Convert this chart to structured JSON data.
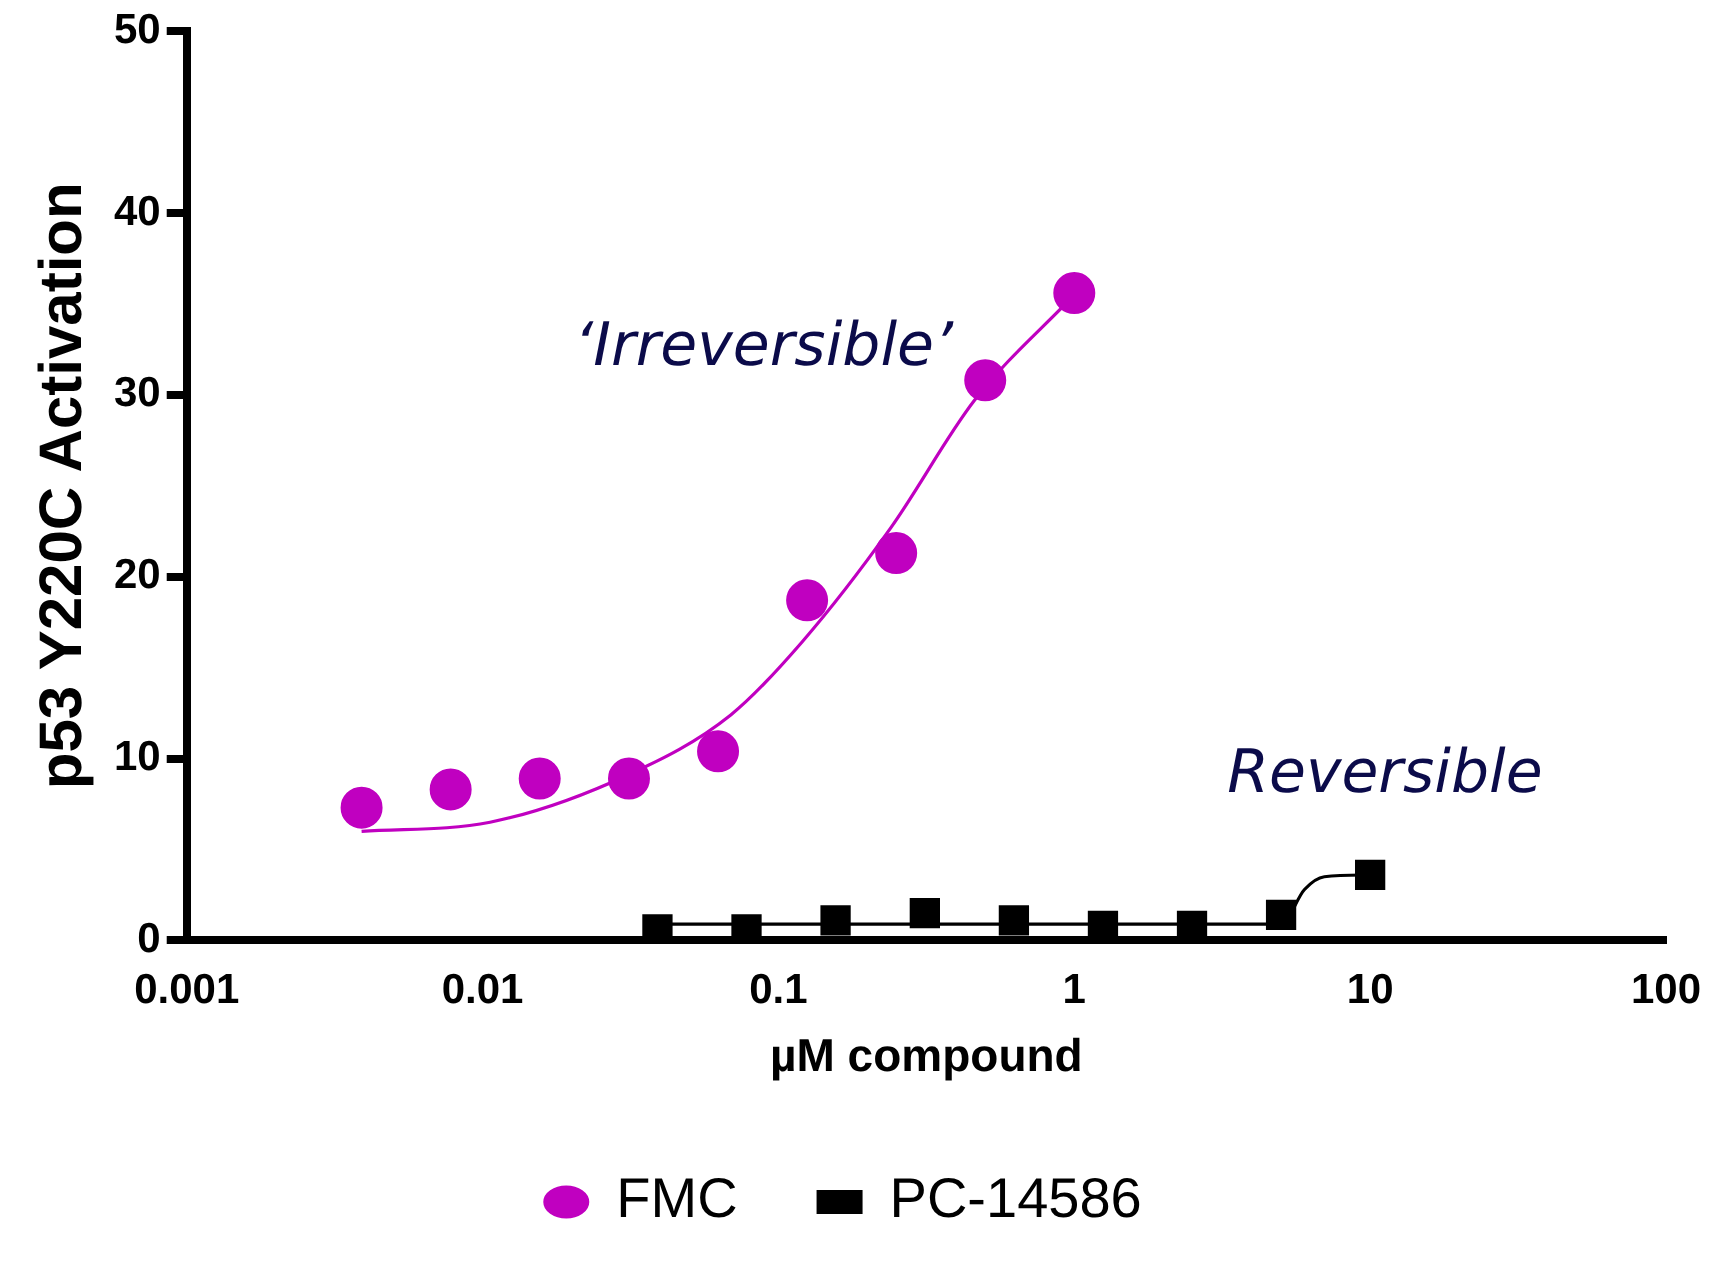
{
  "chart_data": {
    "type": "scatter",
    "xlabel": "µM compound",
    "ylabel": "p53 Y220C Activation",
    "log": "x",
    "xlim": [
      0.001,
      100
    ],
    "xticks": [
      0.001,
      0.01,
      0.1,
      1,
      10,
      100
    ],
    "ylim": [
      0,
      50
    ],
    "yticks": [
      0,
      10,
      20,
      30,
      40,
      50
    ],
    "grid": false,
    "legend": "bottom",
    "series": [
      {
        "name": "FMC",
        "color": "#c000c0",
        "marker": "circle",
        "x": [
          0.0039,
          0.0078,
          0.0156,
          0.03125,
          0.0625,
          0.125,
          0.25,
          0.5,
          1
        ],
        "values": [
          7.3,
          8.3,
          8.9,
          8.9,
          10.4,
          18.7,
          21.3,
          30.8,
          35.6
        ]
      },
      {
        "type": "line",
        "color": "#c000c0",
        "marker": "none",
        "x": [
          0.0039,
          0.0106,
          0.031,
          0.069,
          0.12,
          0.24,
          0.46,
          1
        ],
        "values": [
          6.0,
          6.5,
          9.1,
          12.4,
          16.4,
          22.7,
          29.7,
          35.5
        ]
      },
      {
        "name": "PC-14586",
        "color": "#000000",
        "marker": "square",
        "x": [
          0.039,
          0.078,
          0.156,
          0.3125,
          0.625,
          1.25,
          2.5,
          5,
          10
        ],
        "values": [
          0.6,
          0.6,
          1.1,
          1.5,
          1.1,
          0.8,
          0.8,
          1.4,
          3.6
        ]
      },
      {
        "type": "line",
        "color": "#000000",
        "marker": "none",
        "x": [
          0.039,
          5,
          6,
          7,
          10
        ],
        "values": [
          0.9,
          0.9,
          2.8,
          3.5,
          3.6
        ]
      }
    ],
    "annotations": [
      "‘Irreversible’",
      "Reversible"
    ]
  }
}
